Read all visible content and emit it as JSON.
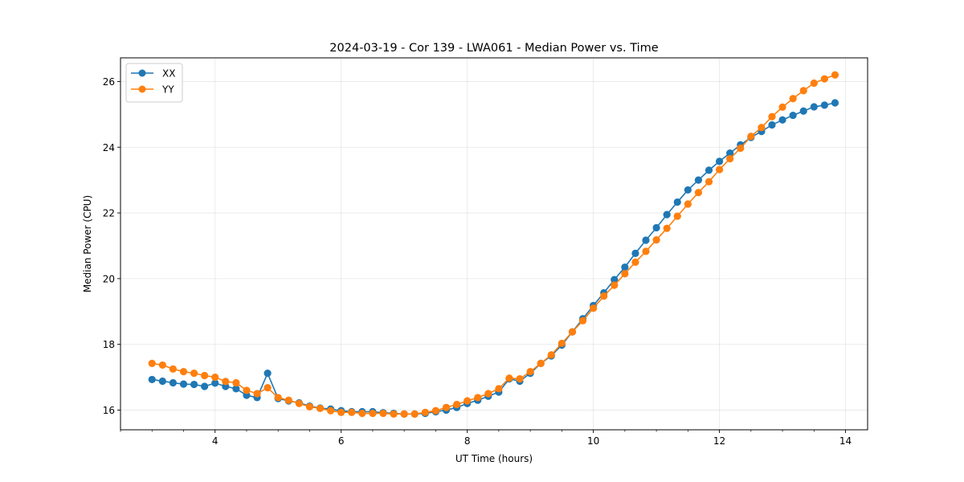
{
  "chart_data": {
    "type": "line",
    "title": "2024-03-19 - Cor 139 - LWA061 - Median Power vs. Time",
    "xlabel": "UT Time (hours)",
    "ylabel": "Median Power (CPU)",
    "xlim": [
      2.5,
      14.35
    ],
    "ylim": [
      15.4,
      26.72
    ],
    "xticks": [
      4,
      6,
      8,
      10,
      12,
      14
    ],
    "xtick_labels": [
      "4",
      "6",
      "8",
      "10",
      "12",
      "14"
    ],
    "xminor_step": 0.5,
    "yticks": [
      16,
      18,
      20,
      22,
      24,
      26
    ],
    "ytick_labels": [
      "16",
      "18",
      "20",
      "22",
      "24",
      "26"
    ],
    "grid": true,
    "legend_position": "upper-left",
    "x": [
      3.0,
      3.1667,
      3.3333,
      3.5,
      3.6667,
      3.8333,
      4.0,
      4.1667,
      4.3333,
      4.5,
      4.6667,
      4.8333,
      5.0,
      5.1667,
      5.3333,
      5.5,
      5.6667,
      5.8333,
      6.0,
      6.1667,
      6.3333,
      6.5,
      6.6667,
      6.8333,
      7.0,
      7.1667,
      7.3333,
      7.5,
      7.6667,
      7.8333,
      8.0,
      8.1667,
      8.3333,
      8.5,
      8.6667,
      8.8333,
      9.0,
      9.1667,
      9.3333,
      9.5,
      9.6667,
      9.8333,
      10.0,
      10.1667,
      10.3333,
      10.5,
      10.6667,
      10.8333,
      11.0,
      11.1667,
      11.3333,
      11.5,
      11.6667,
      11.8333,
      12.0,
      12.1667,
      12.3333,
      12.5,
      12.6667,
      12.8333,
      13.0,
      13.1667,
      13.3333,
      13.5,
      13.6667,
      13.8333
    ],
    "series": [
      {
        "name": "XX",
        "color": "#1f77b4",
        "values": [
          16.93,
          16.88,
          16.83,
          16.79,
          16.78,
          16.72,
          16.82,
          16.72,
          16.65,
          16.45,
          16.38,
          17.12,
          16.35,
          16.28,
          16.22,
          16.12,
          16.06,
          16.03,
          15.98,
          15.95,
          15.95,
          15.95,
          15.92,
          15.9,
          15.88,
          15.88,
          15.9,
          15.95,
          16.0,
          16.08,
          16.2,
          16.3,
          16.42,
          16.55,
          16.95,
          16.88,
          17.12,
          17.42,
          17.65,
          17.98,
          18.38,
          18.78,
          19.18,
          19.57,
          19.97,
          20.35,
          20.77,
          21.17,
          21.55,
          21.95,
          22.33,
          22.7,
          23.0,
          23.3,
          23.57,
          23.82,
          24.07,
          24.3,
          24.48,
          24.68,
          24.83,
          24.97,
          25.1,
          25.23,
          25.28,
          25.35
        ]
      },
      {
        "name": "YY",
        "color": "#ff7f0e",
        "values": [
          17.42,
          17.37,
          17.25,
          17.17,
          17.12,
          17.05,
          17.0,
          16.87,
          16.83,
          16.6,
          16.5,
          16.68,
          16.38,
          16.3,
          16.2,
          16.1,
          16.05,
          15.98,
          15.93,
          15.93,
          15.9,
          15.9,
          15.9,
          15.88,
          15.88,
          15.88,
          15.93,
          15.98,
          16.08,
          16.17,
          16.28,
          16.38,
          16.5,
          16.65,
          16.97,
          16.95,
          17.17,
          17.42,
          17.68,
          18.03,
          18.38,
          18.72,
          19.1,
          19.47,
          19.8,
          20.15,
          20.5,
          20.83,
          21.18,
          21.53,
          21.9,
          22.27,
          22.62,
          22.95,
          23.32,
          23.65,
          23.97,
          24.33,
          24.6,
          24.93,
          25.22,
          25.48,
          25.72,
          25.95,
          26.08,
          26.2
        ]
      }
    ]
  }
}
